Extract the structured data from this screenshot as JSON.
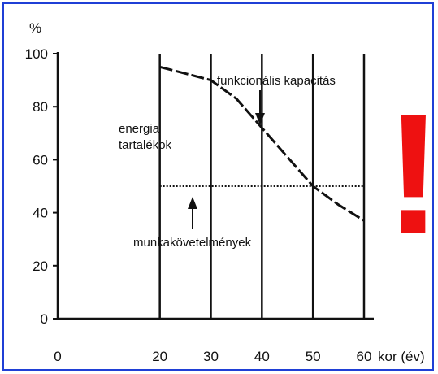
{
  "chart_data": {
    "type": "line",
    "title": "",
    "xlabel": "kor (év)",
    "ylabel": "%",
    "xlim": [
      0,
      60
    ],
    "ylim": [
      0,
      100
    ],
    "x_ticks": [
      0,
      20,
      30,
      40,
      50,
      60
    ],
    "y_ticks": [
      0,
      20,
      40,
      60,
      80,
      100
    ],
    "vertical_grid_at": [
      20,
      30,
      40,
      50,
      60
    ],
    "series": [
      {
        "name": "funkcionális kapacitás",
        "style": "dashed",
        "color": "#111111",
        "x": [
          20,
          30,
          35,
          40,
          45,
          50,
          55,
          60
        ],
        "y": [
          95,
          90,
          83,
          72,
          61,
          50,
          43,
          37
        ]
      },
      {
        "name": "munkakövetelmények",
        "style": "dotted",
        "color": "#111111",
        "x": [
          20,
          60
        ],
        "y": [
          50,
          50
        ]
      }
    ],
    "annotations": {
      "energy_line1": "energia",
      "energy_line2": "tartalékok",
      "capacity": "funkcionális kapacitás",
      "requirements": "munkakövetelmények"
    },
    "exclamation": "!",
    "colors": {
      "border": "#1f3fd6",
      "exclamation": "#ee1111",
      "ink": "#111111"
    }
  }
}
